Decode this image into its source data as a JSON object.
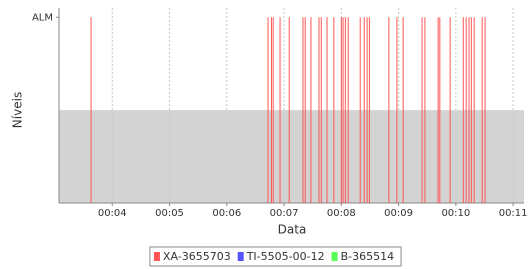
{
  "chart_data": {
    "type": "event",
    "x_label": "Data",
    "y_label": "Níveis",
    "xlim": [
      3.07,
      11.19
    ],
    "xticks": [
      {
        "value": 4,
        "label": "00:04"
      },
      {
        "value": 5,
        "label": "00:05"
      },
      {
        "value": 6,
        "label": "00:06"
      },
      {
        "value": 7,
        "label": "00:07"
      },
      {
        "value": 8,
        "label": "00:08"
      },
      {
        "value": 9,
        "label": "00:09"
      },
      {
        "value": 10,
        "label": "00:10"
      },
      {
        "value": 11,
        "label": "00:11"
      }
    ],
    "ylim": [
      0,
      1.05
    ],
    "yticks": [
      {
        "value": 1,
        "label": "ALM"
      }
    ],
    "shaded_range": [
      0,
      0.5
    ],
    "grid": true,
    "legend": "bottom",
    "series": [
      {
        "name": "XA-3655703",
        "color": "#ff5555",
        "x": [
          3.63,
          6.72,
          6.78,
          6.81,
          6.93,
          7.09,
          7.33,
          7.37,
          7.47,
          7.61,
          7.65,
          7.75,
          7.87,
          8.0,
          8.03,
          8.07,
          8.12,
          8.33,
          8.4,
          8.45,
          8.49,
          8.83,
          8.97,
          9.08,
          9.41,
          9.46,
          9.69,
          9.72,
          9.9,
          10.13,
          10.18,
          10.23,
          10.27,
          10.32,
          10.46,
          10.51
        ],
        "values": [
          1,
          1,
          1,
          1,
          1,
          1,
          1,
          1,
          1,
          1,
          1,
          1,
          1,
          1,
          1,
          1,
          1,
          1,
          1,
          1,
          1,
          1,
          1,
          1,
          1,
          1,
          1,
          1,
          1,
          1,
          1,
          1,
          1,
          1,
          1,
          1
        ]
      },
      {
        "name": "TI-5505-00-12",
        "color": "#5555ff",
        "x": [],
        "values": []
      },
      {
        "name": "B-365514",
        "color": "#55ff55",
        "x": [],
        "values": []
      }
    ]
  }
}
